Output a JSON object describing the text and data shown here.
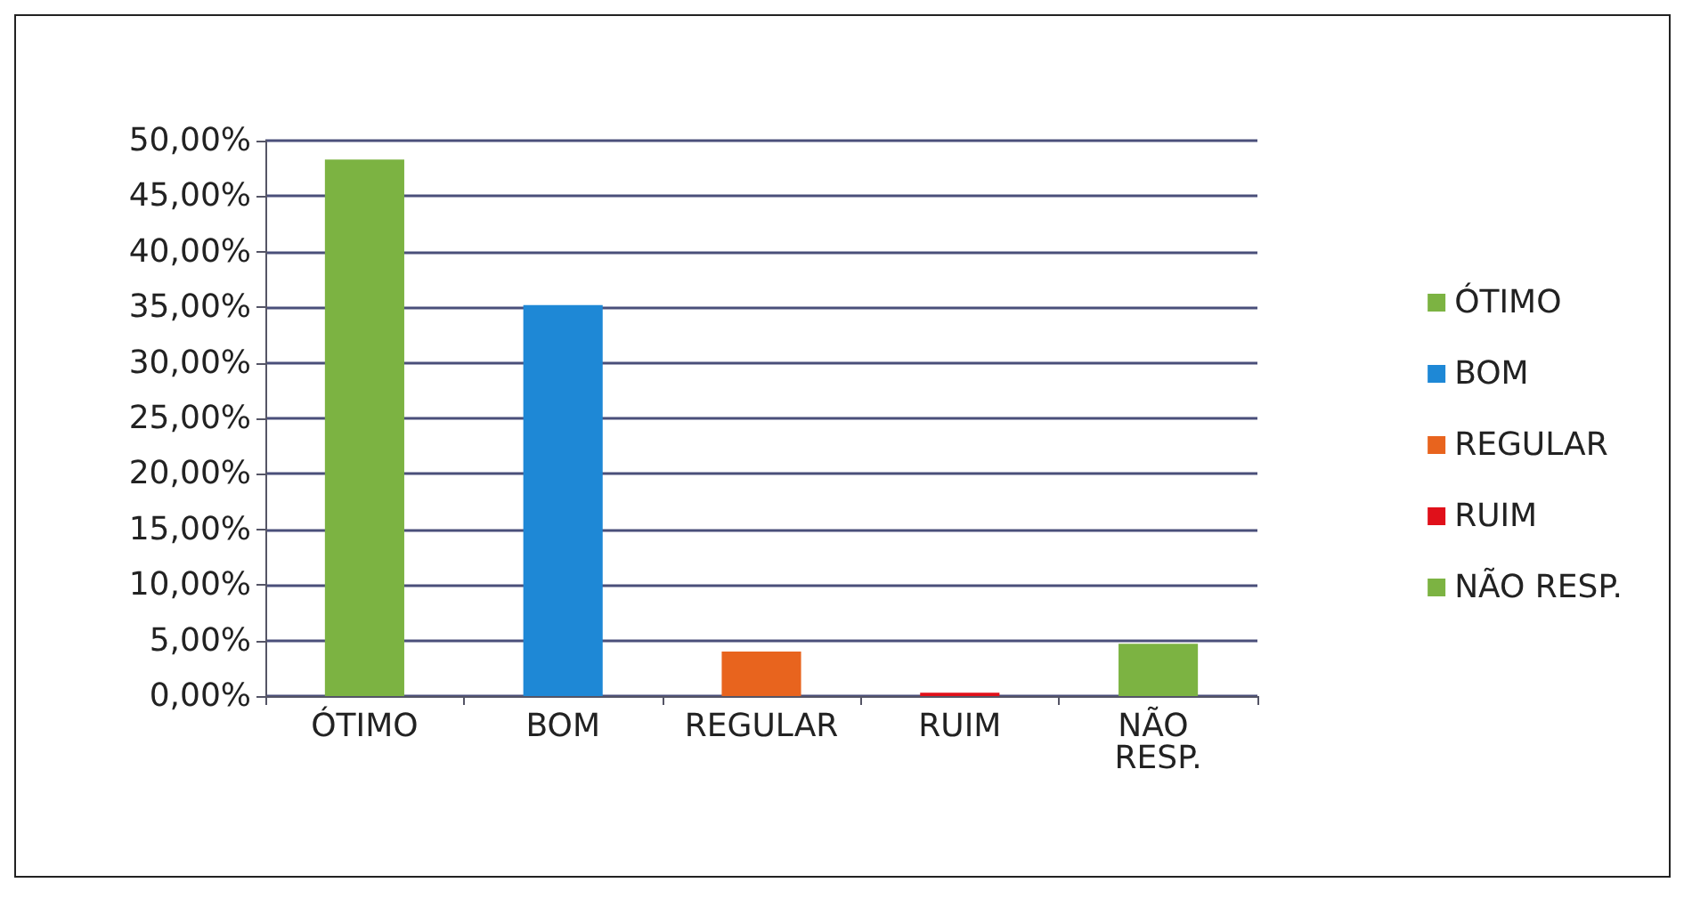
{
  "chart_data": {
    "type": "bar",
    "categories": [
      "ÓTIMO",
      "BOM",
      "REGULAR",
      "RUIM",
      "NÃO RESP."
    ],
    "series": [
      {
        "name": "ÓTIMO",
        "color": "#7cb342",
        "values": [
          48.3,
          null,
          null,
          null,
          null
        ]
      },
      {
        "name": "BOM",
        "color": "#1e88d6",
        "values": [
          null,
          35.2,
          null,
          null,
          null
        ]
      },
      {
        "name": "REGULAR",
        "color": "#e8641e",
        "values": [
          null,
          null,
          4.0,
          null,
          null
        ]
      },
      {
        "name": "RUIM",
        "color": "#e0101a",
        "values": [
          null,
          null,
          null,
          0.3,
          null
        ]
      },
      {
        "name": "NÃO RESP.",
        "color": "#7cb342",
        "values": [
          null,
          null,
          null,
          null,
          4.7
        ]
      }
    ],
    "stacked": true,
    "ylim": [
      0,
      50
    ],
    "yticks": [
      {
        "value": 0,
        "label": "0,00%"
      },
      {
        "value": 5,
        "label": "5,00%"
      },
      {
        "value": 10,
        "label": "10,00%"
      },
      {
        "value": 15,
        "label": "15,00%"
      },
      {
        "value": 20,
        "label": "20,00%"
      },
      {
        "value": 25,
        "label": "25,00%"
      },
      {
        "value": 30,
        "label": "30,00%"
      },
      {
        "value": 35,
        "label": "35,00%"
      },
      {
        "value": 40,
        "label": "40,00%"
      },
      {
        "value": 45,
        "label": "45,00%"
      },
      {
        "value": 50,
        "label": "50,00%"
      }
    ],
    "grid": "y",
    "legend": "right"
  }
}
